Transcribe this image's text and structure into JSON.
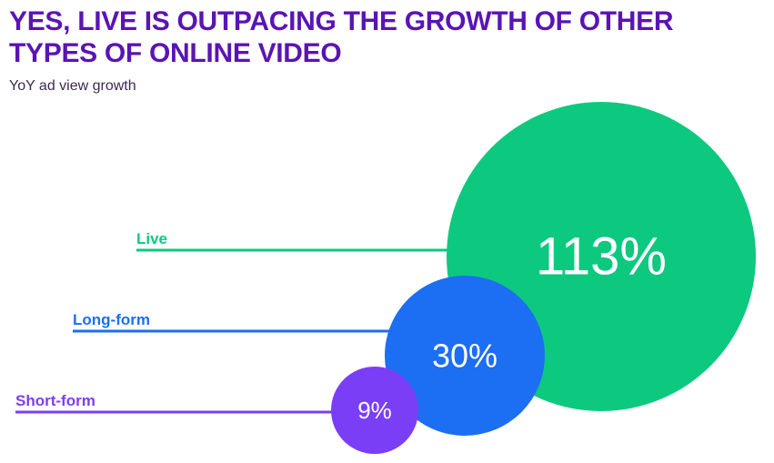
{
  "colors": {
    "title": "#5a14b4",
    "live": "#0dc97f",
    "long_form": "#1c6ef2",
    "short_form": "#7b3ef7",
    "bubble_text": "#ffffff"
  },
  "title_lines": [
    "YES, LIVE IS OUTPACING THE GROWTH OF OTHER",
    "TYPES OF ONLINE VIDEO"
  ],
  "subtitle": "YoY ad view growth",
  "chart_data": {
    "type": "bubble",
    "title": "YES, LIVE IS OUTPACING THE GROWTH OF OTHER TYPES OF ONLINE VIDEO",
    "subtitle": "YoY ad view growth",
    "unit": "%",
    "series": [
      {
        "name": "Live",
        "value": 113,
        "label": "113%"
      },
      {
        "name": "Long-form",
        "value": 30,
        "label": "30%"
      },
      {
        "name": "Short-form",
        "value": 9,
        "label": "9%"
      }
    ]
  }
}
